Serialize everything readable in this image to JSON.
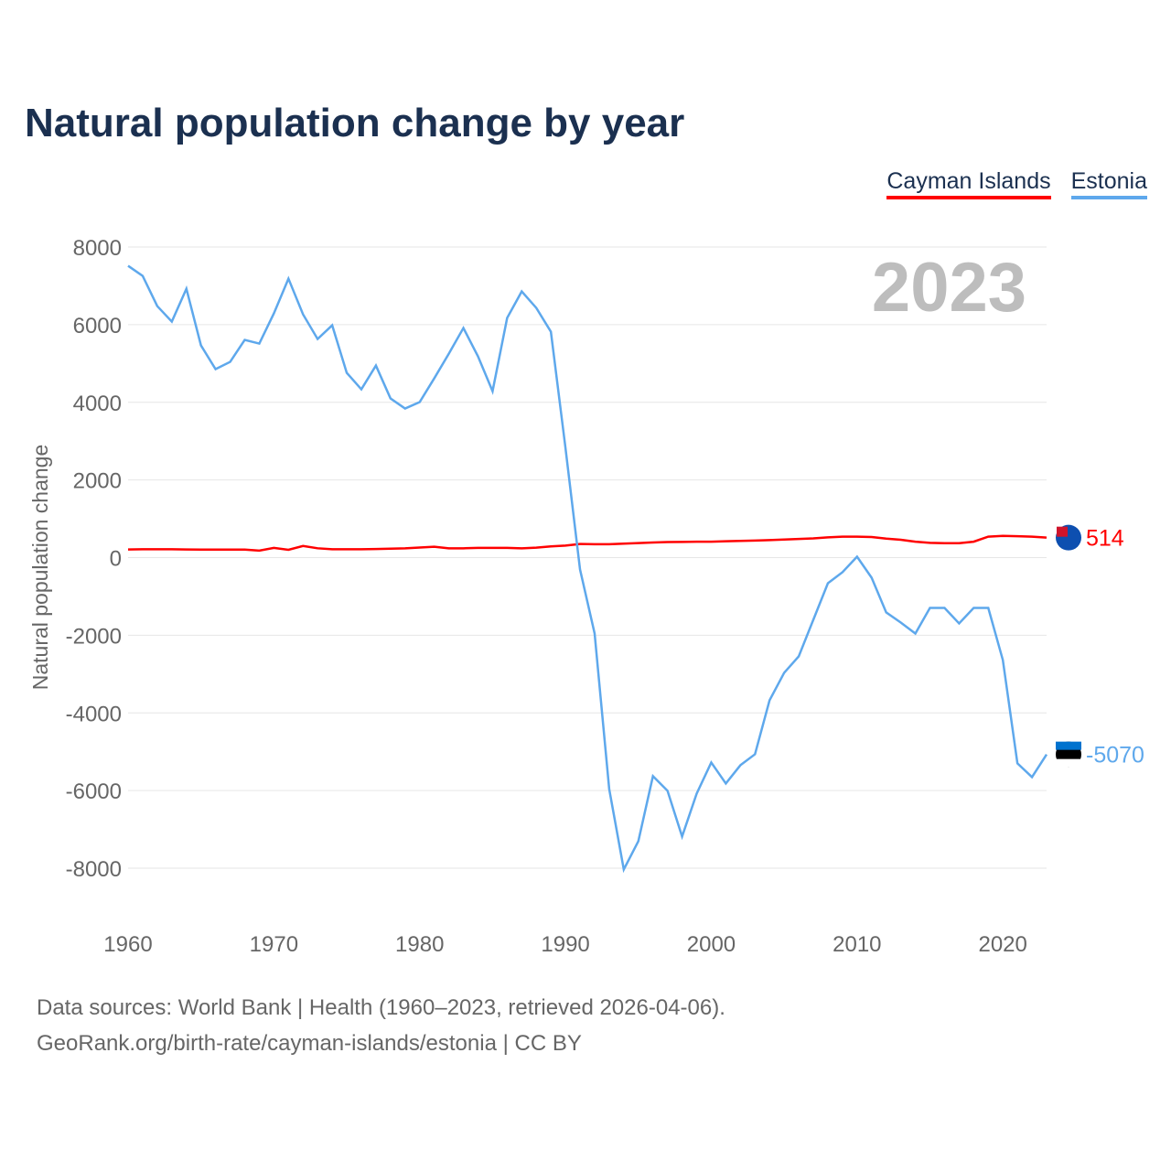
{
  "title": "Natural population change by year",
  "footer": {
    "line1": "Data sources: World Bank | Health (1960–2023, retrieved 2026-04-06).",
    "line2": "GeoRank.org/birth-rate/cayman-islands/estonia | CC BY"
  },
  "chart_data": {
    "type": "line",
    "title": "Natural population change by year",
    "xlabel": "",
    "ylabel": "Natural population change",
    "year_label": "2023",
    "xlim": [
      1960,
      2023
    ],
    "ylim": [
      -8000,
      8000
    ],
    "x_ticks": [
      "1960",
      "1970",
      "1980",
      "1990",
      "2000",
      "2010",
      "2020"
    ],
    "y_ticks": [
      "8000",
      "6000",
      "4000",
      "2000",
      "0",
      "-2000",
      "-4000",
      "-6000",
      "-8000"
    ],
    "grid": true,
    "legend_position": "top-right",
    "x": [
      1960,
      1961,
      1962,
      1963,
      1964,
      1965,
      1966,
      1967,
      1968,
      1969,
      1970,
      1971,
      1972,
      1973,
      1974,
      1975,
      1976,
      1977,
      1978,
      1979,
      1980,
      1981,
      1982,
      1983,
      1984,
      1985,
      1986,
      1987,
      1988,
      1989,
      1990,
      1991,
      1992,
      1993,
      1994,
      1995,
      1996,
      1997,
      1998,
      1999,
      2000,
      2001,
      2002,
      2003,
      2004,
      2005,
      2006,
      2007,
      2008,
      2009,
      2010,
      2011,
      2012,
      2013,
      2014,
      2015,
      2016,
      2017,
      2018,
      2019,
      2020,
      2021,
      2022,
      2023
    ],
    "series": [
      {
        "name": "Cayman Islands",
        "color": "#ff0000",
        "end_label": "514",
        "flag": "cayman-islands-flag",
        "values": [
          210,
          215,
          215,
          215,
          210,
          205,
          205,
          205,
          205,
          180,
          250,
          200,
          300,
          240,
          215,
          215,
          215,
          220,
          230,
          240,
          260,
          280,
          240,
          240,
          250,
          250,
          250,
          240,
          255,
          290,
          310,
          350,
          345,
          345,
          360,
          375,
          390,
          400,
          405,
          410,
          410,
          420,
          430,
          440,
          450,
          465,
          480,
          495,
          520,
          540,
          540,
          530,
          490,
          460,
          410,
          380,
          370,
          370,
          410,
          540,
          560,
          550,
          540,
          514
        ]
      },
      {
        "name": "Estonia",
        "color": "#5ea8ec",
        "end_label": "-5070",
        "flag": "estonia-flag",
        "values": [
          7515,
          7255,
          6478,
          6078,
          6925,
          5465,
          4853,
          5041,
          5607,
          5512,
          6290,
          7185,
          6266,
          5630,
          5983,
          4758,
          4334,
          4947,
          4099,
          3840,
          4005,
          4617,
          5253,
          5913,
          5183,
          4287,
          6172,
          6855,
          6431,
          5819,
          2827,
          -306,
          -1955,
          -5960,
          -8033,
          -7303,
          -5630,
          -6007,
          -7185,
          -6078,
          -5277,
          -5819,
          -5347,
          -5065,
          -3675,
          -2968,
          -2544,
          -1602,
          -660,
          -377,
          24,
          -518,
          -1413,
          -1673,
          -1955,
          -1296,
          -1296,
          -1696,
          -1296,
          -1296,
          -2638,
          -5300,
          -5654,
          -5070
        ]
      }
    ]
  }
}
